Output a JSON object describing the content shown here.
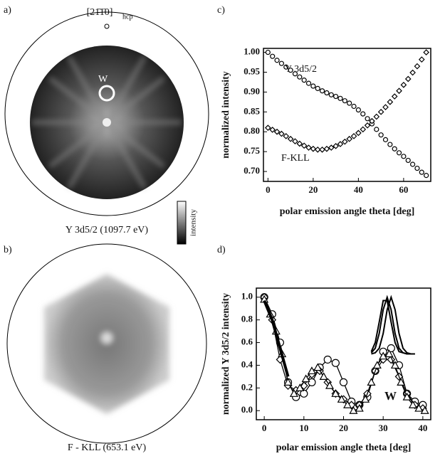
{
  "panels": [
    {
      "label": "a)",
      "direction": "[21̄1̄0]",
      "direction_sub": "hcp",
      "marker": "W",
      "caption": "Y 3d5/2 (1097.7 eV)",
      "colorbar": "intensity"
    },
    {
      "label": "b)",
      "caption": "F - KLL (653.1 eV)"
    }
  ],
  "chart_data": [
    {
      "type": "scatter",
      "panel": "c)",
      "xlabel": "polar emission angle theta [deg]",
      "ylabel": "normalized intensity",
      "xlim": [
        -2,
        72
      ],
      "ylim": [
        0.675,
        1.01
      ],
      "xticks": [
        0,
        20,
        40,
        60
      ],
      "yticks": [
        {
          "value": 0.7,
          "label": "0.70"
        },
        0.75,
        {
          "value": 0.8,
          "label": "0.80"
        },
        0.85,
        {
          "value": 0.9,
          "label": "0.90"
        },
        0.95,
        {
          "value": 1,
          "label": "1.00"
        }
      ],
      "series": [
        {
          "name": "Y 3d5/2",
          "color": "#000000",
          "marker": "circle",
          "line": false,
          "x": [
            0,
            2,
            4,
            6,
            8,
            10,
            12,
            14,
            16,
            18,
            20,
            22,
            24,
            26,
            28,
            30,
            32,
            34,
            36,
            38,
            40,
            42,
            44,
            46,
            48,
            50,
            52,
            54,
            56,
            58,
            60,
            62,
            64,
            66,
            68,
            70
          ],
          "values": [
            1.0,
            0.99,
            0.98,
            0.972,
            0.963,
            0.955,
            0.946,
            0.938,
            0.93,
            0.922,
            0.915,
            0.909,
            0.903,
            0.898,
            0.893,
            0.889,
            0.884,
            0.878,
            0.872,
            0.864,
            0.855,
            0.845,
            0.833,
            0.82,
            0.806,
            0.792,
            0.78,
            0.768,
            0.757,
            0.747,
            0.738,
            0.728,
            0.718,
            0.708,
            0.698,
            0.69
          ]
        },
        {
          "name": "F-KLL",
          "color": "#000000",
          "marker": "diamond",
          "line": false,
          "x": [
            0,
            2,
            4,
            6,
            8,
            10,
            12,
            14,
            16,
            18,
            20,
            22,
            24,
            26,
            28,
            30,
            32,
            34,
            36,
            38,
            40,
            42,
            44,
            46,
            48,
            50,
            52,
            54,
            56,
            58,
            60,
            62,
            64,
            66,
            68,
            70
          ],
          "values": [
            0.81,
            0.805,
            0.8,
            0.795,
            0.789,
            0.782,
            0.776,
            0.77,
            0.765,
            0.76,
            0.757,
            0.755,
            0.755,
            0.757,
            0.76,
            0.764,
            0.769,
            0.775,
            0.782,
            0.789,
            0.797,
            0.806,
            0.816,
            0.827,
            0.838,
            0.85,
            0.862,
            0.875,
            0.889,
            0.903,
            0.918,
            0.933,
            0.949,
            0.965,
            0.982,
            1.0
          ]
        }
      ]
    },
    {
      "type": "scatter",
      "panel": "d)",
      "xlabel": "polar emission angle theta [deg]",
      "ylabel": "normalized Y 3d5/2 intensity",
      "annotation": "W",
      "xlim": [
        -2,
        42
      ],
      "ylim": [
        -0.08,
        1.08
      ],
      "xticks": [
        0,
        10,
        20,
        30,
        40
      ],
      "yticks": [
        {
          "value": 0,
          "label": "0.0"
        },
        0.2,
        0.4,
        0.6,
        0.8,
        {
          "value": 1,
          "label": "1.0"
        }
      ],
      "series": [
        {
          "color": "#000000",
          "marker": "circle",
          "line": true,
          "x": [
            0,
            2,
            4,
            6,
            8,
            10,
            12,
            14,
            16,
            18,
            20,
            22,
            24,
            26,
            28,
            30,
            32,
            34,
            36,
            38,
            40
          ],
          "values": [
            1.0,
            0.85,
            0.6,
            0.25,
            0.12,
            0.15,
            0.25,
            0.38,
            0.45,
            0.42,
            0.25,
            0.08,
            0.05,
            0.12,
            0.35,
            0.52,
            0.55,
            0.4,
            0.15,
            0.08,
            0.05
          ]
        },
        {
          "color": "#000000",
          "marker": "diamond",
          "line": true,
          "x": [
            0,
            2,
            4,
            6,
            8,
            10,
            12,
            14,
            16,
            18,
            20,
            22,
            24,
            26,
            28,
            30,
            32,
            34,
            36,
            38,
            40
          ],
          "values": [
            1.0,
            0.8,
            0.45,
            0.22,
            0.18,
            0.22,
            0.32,
            0.35,
            0.25,
            0.15,
            0.1,
            0.05,
            0.05,
            0.15,
            0.35,
            0.45,
            0.45,
            0.3,
            0.15,
            0.05,
            0.02
          ]
        },
        {
          "color": "#000000",
          "marker": "triangle",
          "line": true,
          "x": [
            0,
            1.5,
            3,
            4.5,
            6,
            7.5,
            9,
            10.5,
            12,
            13.5,
            15,
            16.5,
            18,
            19.5,
            21,
            22.5,
            24,
            25.5,
            27,
            28.5,
            30,
            31.5,
            33,
            34.5,
            36,
            37.5,
            39,
            40.5
          ],
          "values": [
            0.98,
            0.85,
            0.7,
            0.5,
            0.25,
            0.15,
            0.2,
            0.28,
            0.35,
            0.38,
            0.3,
            0.22,
            0.15,
            0.1,
            0.05,
            0.0,
            0.02,
            0.1,
            0.25,
            0.4,
            0.48,
            0.5,
            0.4,
            0.25,
            0.12,
            0.05,
            0.02,
            0.0
          ]
        },
        {
          "color": "#000000",
          "marker": "none",
          "line": true,
          "width": 4,
          "x": [
            0,
            2,
            4,
            6
          ],
          "values": [
            0.97,
            0.8,
            0.55,
            0.3
          ]
        },
        {
          "color": "#000000",
          "marker": "none",
          "line": true,
          "width": 2,
          "x": [
            27,
            28,
            29,
            30,
            31,
            32,
            33,
            34,
            35,
            36,
            37,
            38
          ],
          "values": [
            0.52,
            0.6,
            0.78,
            0.97,
            0.97,
            0.78,
            0.6,
            0.52,
            0.51,
            0.5,
            0.5,
            0.5
          ]
        },
        {
          "color": "#000000",
          "marker": "none",
          "line": true,
          "width": 2,
          "x": [
            27,
            28,
            29,
            30,
            31,
            32,
            33,
            34,
            35,
            36,
            37,
            38
          ],
          "values": [
            0.51,
            0.55,
            0.68,
            0.89,
            1.0,
            0.89,
            0.68,
            0.55,
            0.51,
            0.5,
            0.5,
            0.5
          ]
        },
        {
          "color": "#000000",
          "marker": "none",
          "line": true,
          "width": 2,
          "x": [
            27,
            28,
            29,
            30,
            31,
            32,
            33,
            34,
            35,
            36,
            37,
            38
          ],
          "values": [
            0.5,
            0.51,
            0.55,
            0.68,
            0.89,
            1.0,
            0.89,
            0.68,
            0.55,
            0.51,
            0.5,
            0.5
          ]
        }
      ]
    }
  ]
}
